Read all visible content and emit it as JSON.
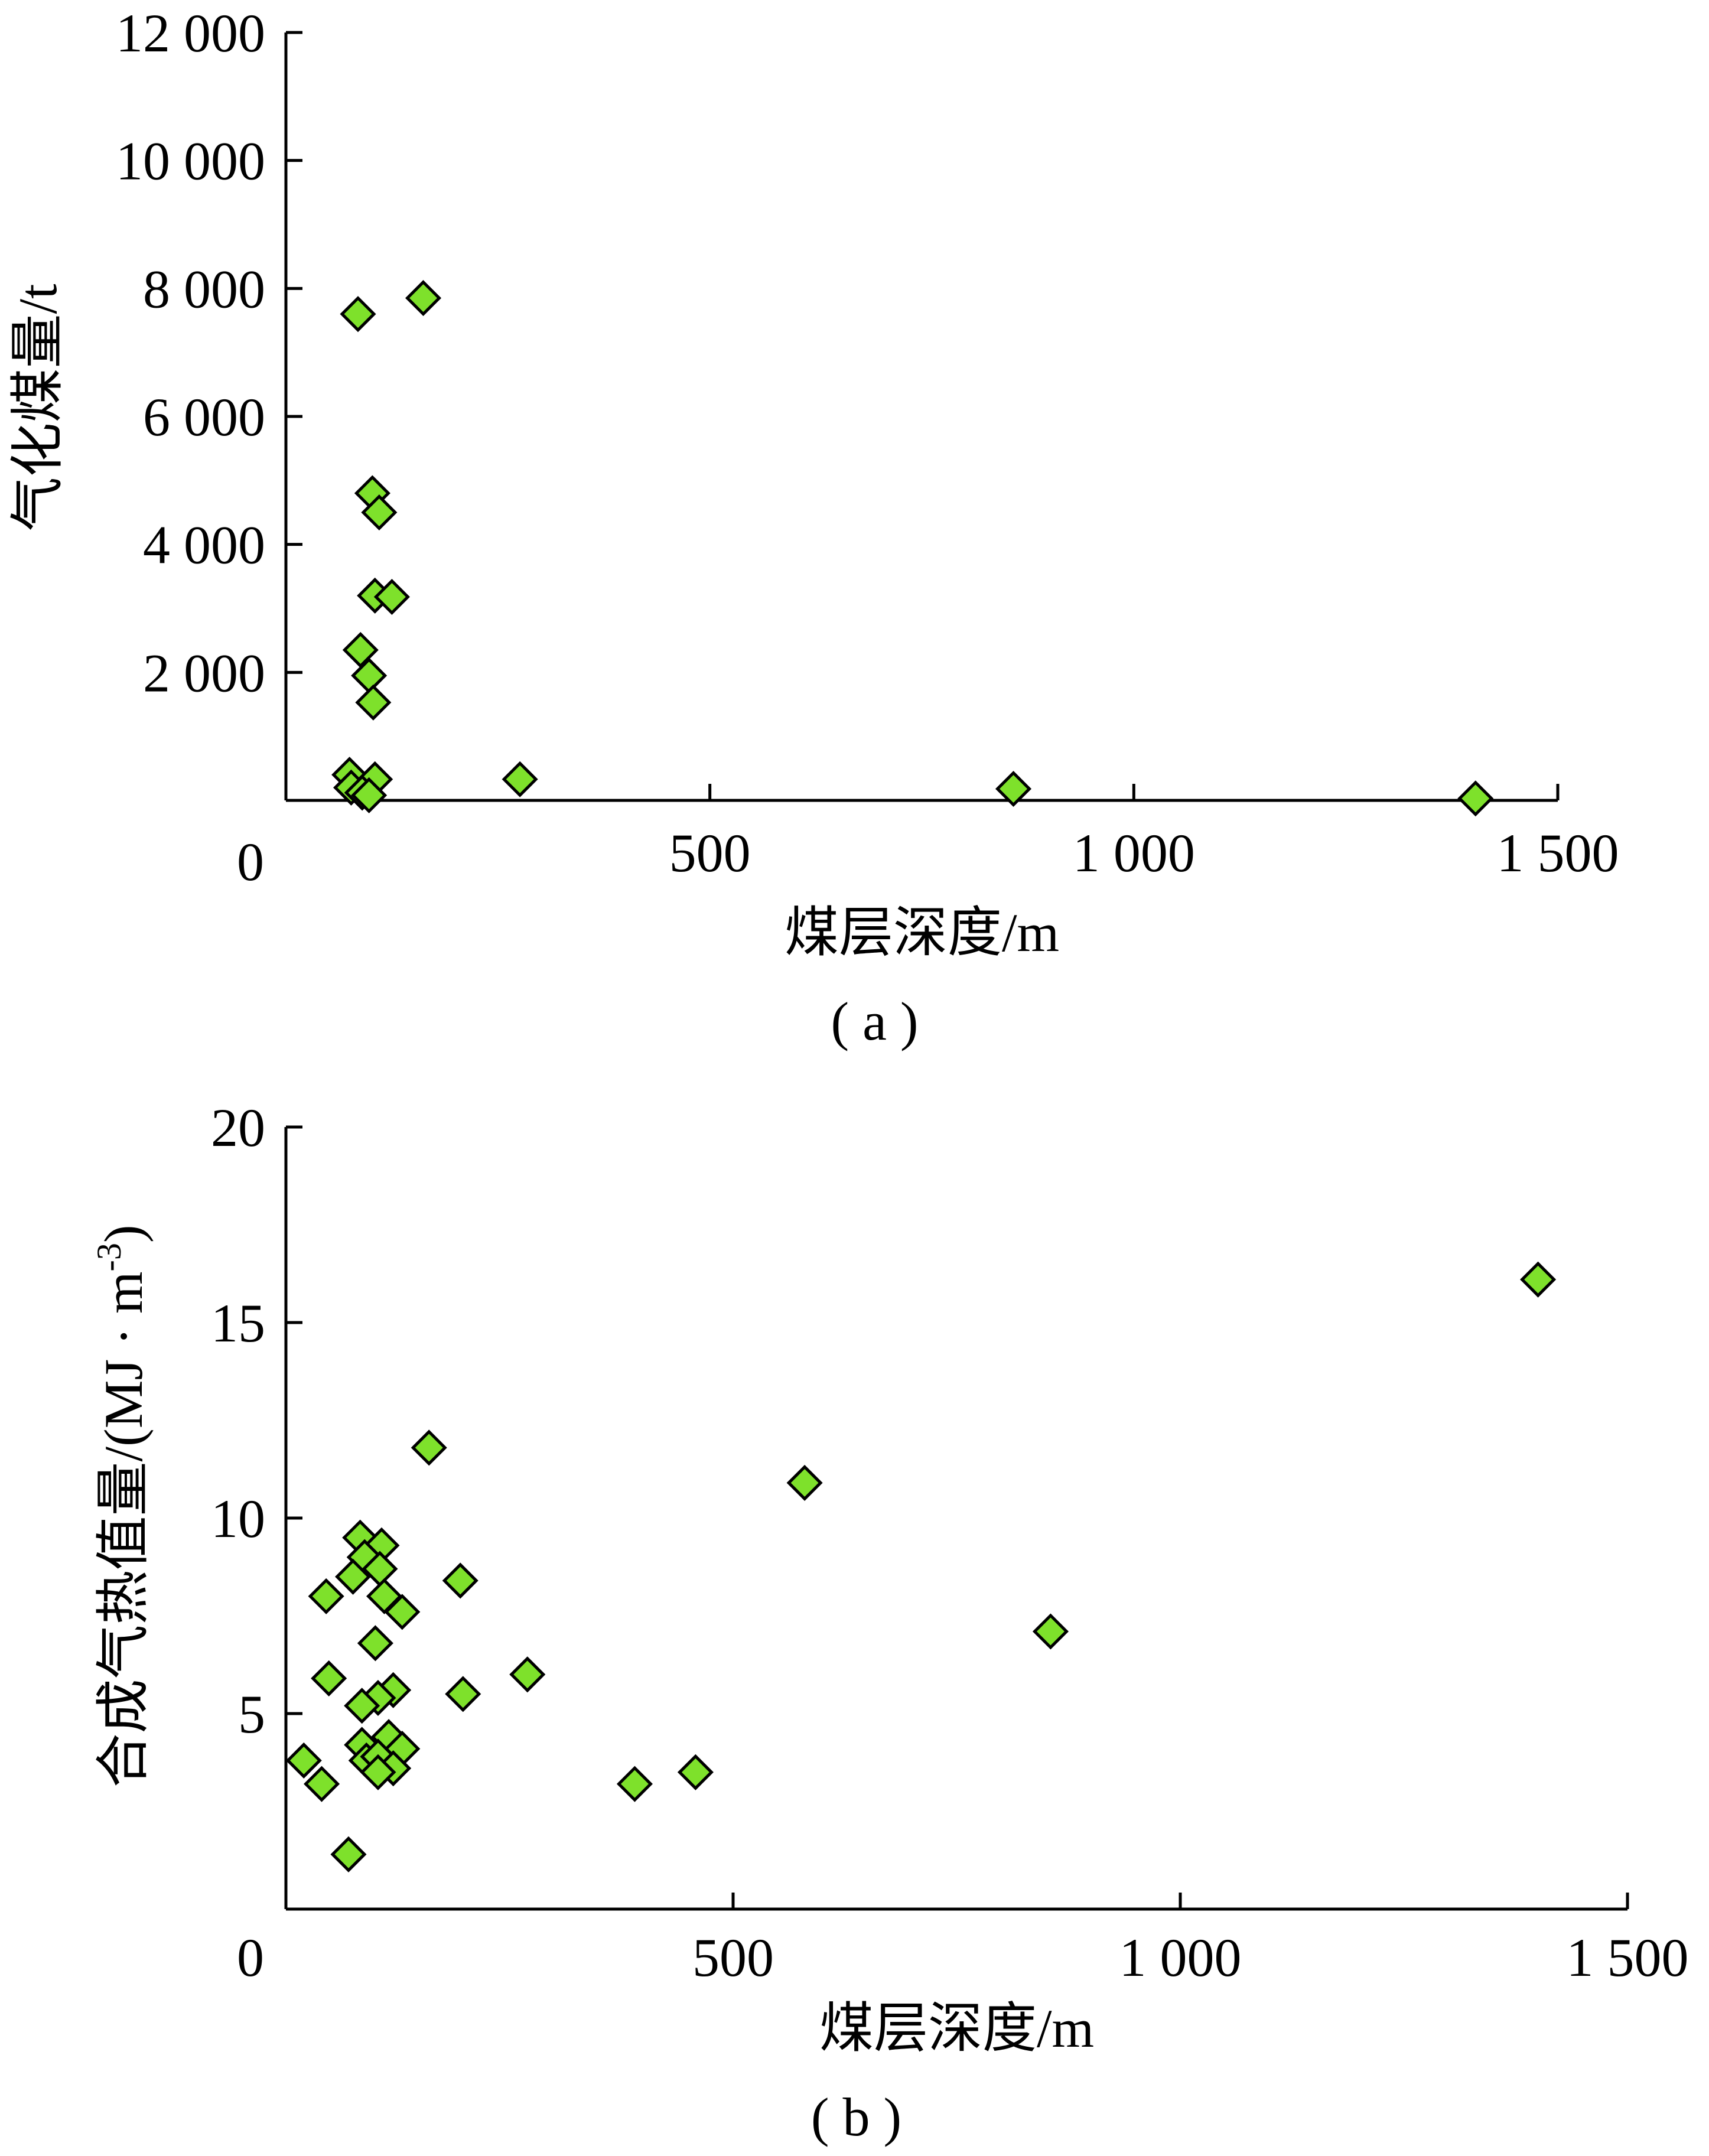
{
  "chart_data": [
    {
      "type": "scatter",
      "panel_label": "( a )",
      "xlabel": "煤层深度/m",
      "ylabel": "气化煤量/t",
      "xlim": [
        0,
        1500
      ],
      "ylim": [
        0,
        12000
      ],
      "x_ticks": [
        {
          "value": 0,
          "label": "0"
        },
        {
          "value": 500,
          "label": "500"
        },
        {
          "value": 1000,
          "label": "1 000"
        },
        {
          "value": 1500,
          "label": "1 500"
        }
      ],
      "y_ticks": [
        {
          "value": 2000,
          "label": "2 000"
        },
        {
          "value": 4000,
          "label": "4 000"
        },
        {
          "value": 6000,
          "label": "6 000"
        },
        {
          "value": 8000,
          "label": "8 000"
        },
        {
          "value": 10000,
          "label": "10 000"
        },
        {
          "value": 12000,
          "label": "12 000"
        }
      ],
      "marker_color": "#7ee12b",
      "points": [
        {
          "x": 85,
          "y": 7600
        },
        {
          "x": 162,
          "y": 7850
        },
        {
          "x": 102,
          "y": 4800
        },
        {
          "x": 110,
          "y": 4500
        },
        {
          "x": 105,
          "y": 3200
        },
        {
          "x": 125,
          "y": 3180
        },
        {
          "x": 88,
          "y": 2350
        },
        {
          "x": 98,
          "y": 1950
        },
        {
          "x": 103,
          "y": 1530
        },
        {
          "x": 75,
          "y": 400
        },
        {
          "x": 105,
          "y": 330
        },
        {
          "x": 77,
          "y": 200
        },
        {
          "x": 90,
          "y": 120
        },
        {
          "x": 98,
          "y": 80
        },
        {
          "x": 276,
          "y": 330
        },
        {
          "x": 858,
          "y": 180
        },
        {
          "x": 1403,
          "y": 30
        }
      ]
    },
    {
      "type": "scatter",
      "panel_label": "( b )",
      "xlabel": "煤层深度/m",
      "ylabel": "合成气热值量/(MJ · m",
      "ylabel_sup": "-3",
      "ylabel_end": ")",
      "xlim": [
        0,
        1500
      ],
      "ylim": [
        0,
        20
      ],
      "x_ticks": [
        {
          "value": 0,
          "label": "0"
        },
        {
          "value": 500,
          "label": "500"
        },
        {
          "value": 1000,
          "label": "1 000"
        },
        {
          "value": 1500,
          "label": "1 500"
        }
      ],
      "y_ticks": [
        {
          "value": 5,
          "label": "5"
        },
        {
          "value": 10,
          "label": "10"
        },
        {
          "value": 15,
          "label": "15"
        },
        {
          "value": 20,
          "label": "20"
        }
      ],
      "marker_color": "#7ee12b",
      "points": [
        {
          "x": 1400,
          "y": 16.1
        },
        {
          "x": 160,
          "y": 11.8
        },
        {
          "x": 580,
          "y": 10.9
        },
        {
          "x": 83,
          "y": 9.5
        },
        {
          "x": 107,
          "y": 9.3
        },
        {
          "x": 88,
          "y": 9.0
        },
        {
          "x": 105,
          "y": 8.7
        },
        {
          "x": 75,
          "y": 8.5
        },
        {
          "x": 195,
          "y": 8.4
        },
        {
          "x": 45,
          "y": 8.0
        },
        {
          "x": 110,
          "y": 8.0
        },
        {
          "x": 130,
          "y": 7.6
        },
        {
          "x": 855,
          "y": 7.1
        },
        {
          "x": 100,
          "y": 6.8
        },
        {
          "x": 48,
          "y": 5.9
        },
        {
          "x": 270,
          "y": 6.0
        },
        {
          "x": 120,
          "y": 5.6
        },
        {
          "x": 198,
          "y": 5.5
        },
        {
          "x": 103,
          "y": 5.4
        },
        {
          "x": 85,
          "y": 5.2
        },
        {
          "x": 115,
          "y": 4.4
        },
        {
          "x": 130,
          "y": 4.1
        },
        {
          "x": 85,
          "y": 4.2
        },
        {
          "x": 20,
          "y": 3.8
        },
        {
          "x": 90,
          "y": 3.8
        },
        {
          "x": 103,
          "y": 3.9
        },
        {
          "x": 120,
          "y": 3.6
        },
        {
          "x": 103,
          "y": 3.5
        },
        {
          "x": 458,
          "y": 3.5
        },
        {
          "x": 40,
          "y": 3.2
        },
        {
          "x": 390,
          "y": 3.2
        },
        {
          "x": 70,
          "y": 1.4
        }
      ]
    }
  ]
}
